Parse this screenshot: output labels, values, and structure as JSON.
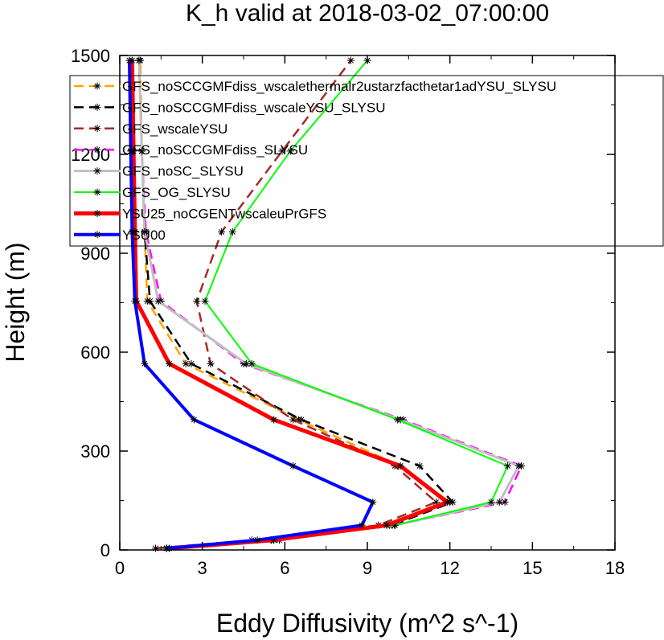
{
  "chart_data": {
    "type": "line",
    "title": "K_h valid at 2018-03-02_07:00:00",
    "xlabel": "Eddy Diffusivity (m^2 s^-1)",
    "ylabel": "Height (m)",
    "xlim": [
      0,
      18
    ],
    "ylim": [
      0,
      1500
    ],
    "xticks": [
      0,
      3,
      6,
      9,
      12,
      15,
      18
    ],
    "yticks": [
      0,
      300,
      600,
      900,
      1200,
      1500
    ],
    "legend_position": "top-right",
    "grid": false,
    "series": [
      {
        "name": "GFS_noSCCGMFdiss_wscalethermalr2ustarzfacthetar1adYSU_SLYSU",
        "color": "#ffa500",
        "dash": "dash",
        "width": 2.5,
        "x": [
          1.8,
          5.8,
          9.8,
          12.0,
          10.2,
          6.5,
          2.4,
          1.0,
          0.9,
          0.8,
          0.75
        ],
        "y": [
          5,
          30,
          75,
          145,
          255,
          395,
          565,
          755,
          965,
          1210,
          1485
        ]
      },
      {
        "name": "GFS_noSCCGMFdiss_wscaleYSU_SLYSU",
        "color": "#000000",
        "dash": "dash",
        "width": 2.5,
        "x": [
          1.7,
          5.6,
          9.9,
          12.1,
          10.9,
          6.6,
          2.6,
          1.1,
          0.9,
          0.8,
          0.7
        ],
        "y": [
          5,
          30,
          75,
          145,
          255,
          395,
          565,
          755,
          965,
          1210,
          1485
        ]
      },
      {
        "name": "GFS_wscaleYSU",
        "color": "#a52a2a",
        "dash": "dash",
        "width": 2.5,
        "x": [
          1.3,
          4.8,
          9.4,
          11.5,
          10.0,
          6.3,
          3.3,
          2.8,
          3.7,
          5.9,
          8.4
        ],
        "y": [
          5,
          30,
          75,
          145,
          255,
          395,
          565,
          755,
          965,
          1210,
          1485
        ]
      },
      {
        "name": "GFS_noSCCGMFdiss_SLYSU",
        "color": "#ff00ff",
        "dash": "dash",
        "width": 2.5,
        "x": [
          1.7,
          5.5,
          10.0,
          14.0,
          14.6,
          10.3,
          4.5,
          1.5,
          0.95,
          0.8,
          0.7
        ],
        "y": [
          5,
          30,
          75,
          145,
          255,
          395,
          565,
          755,
          965,
          1210,
          1485
        ]
      },
      {
        "name": "GFS_noSC_SLYSU",
        "color": "#c0c0c0",
        "dash": "solid",
        "width": 3,
        "x": [
          1.7,
          5.5,
          10.0,
          13.8,
          14.5,
          10.2,
          4.6,
          1.4,
          0.9,
          0.8,
          0.7
        ],
        "y": [
          5,
          30,
          75,
          145,
          255,
          395,
          565,
          755,
          965,
          1210,
          1485
        ]
      },
      {
        "name": "GFS_OG_SLYSU",
        "color": "#00ff00",
        "dash": "solid",
        "width": 2,
        "x": [
          1.7,
          5.5,
          10.0,
          13.5,
          14.1,
          10.1,
          4.8,
          3.1,
          4.1,
          6.2,
          9.0
        ],
        "y": [
          5,
          30,
          75,
          145,
          255,
          395,
          565,
          755,
          965,
          1210,
          1485
        ]
      },
      {
        "name": "YSU25_noCGENTwscaleuPrGFS",
        "color": "#ff0000",
        "dash": "solid",
        "width": 5,
        "x": [
          1.8,
          5.6,
          9.7,
          11.9,
          10.2,
          5.6,
          1.8,
          0.6,
          0.55,
          0.5,
          0.45
        ],
        "y": [
          5,
          30,
          75,
          145,
          255,
          395,
          565,
          755,
          965,
          1210,
          1485
        ]
      },
      {
        "name": "YSU00",
        "color": "#0000ff",
        "dash": "solid",
        "width": 4,
        "x": [
          1.7,
          5.0,
          8.8,
          9.2,
          6.3,
          2.7,
          0.9,
          0.55,
          0.45,
          0.4,
          0.35
        ],
        "y": [
          5,
          30,
          75,
          145,
          255,
          395,
          565,
          755,
          965,
          1210,
          1485
        ]
      }
    ]
  }
}
